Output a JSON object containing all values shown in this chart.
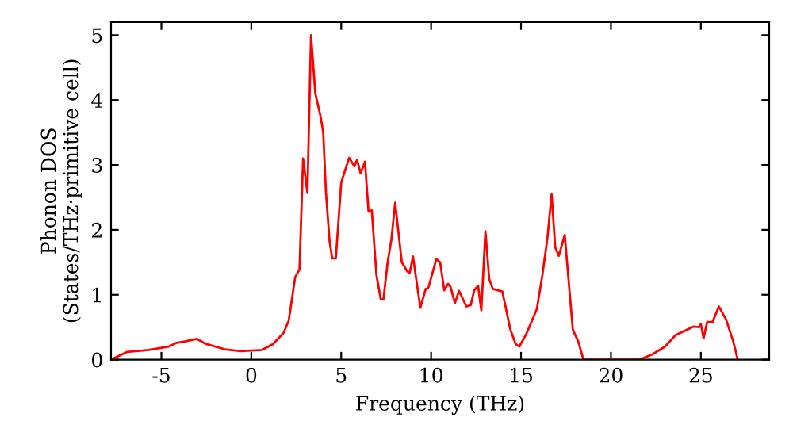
{
  "chart_data": {
    "type": "line",
    "xlabel": "Frequency (THz)",
    "ylabel": "Phonon DOS\n(States/THz·primitive cell)",
    "xlim": [
      -7.8,
      28.8
    ],
    "ylim": [
      0,
      5.2
    ],
    "xticks": [
      -5,
      0,
      5,
      10,
      15,
      20,
      25
    ],
    "yticks": [
      0,
      1,
      2,
      3,
      4,
      5
    ],
    "grid": false,
    "legend": false,
    "marker": "none",
    "line_style": "solid",
    "series": [
      {
        "color": "#ff0000",
        "x": [
          -7.8,
          -6.9,
          -5.7,
          -4.6,
          -4.15,
          -3.7,
          -3.03,
          -2.5,
          -1.47,
          -0.58,
          0.6,
          1.2,
          1.79,
          2.08,
          2.44,
          2.68,
          2.88,
          3.12,
          3.32,
          3.56,
          3.85,
          4.0,
          4.15,
          4.35,
          4.5,
          4.7,
          5.0,
          5.44,
          5.73,
          5.88,
          6.08,
          6.32,
          6.52,
          6.7,
          6.96,
          7.2,
          7.35,
          7.58,
          7.79,
          8.0,
          8.37,
          8.67,
          8.81,
          8.99,
          9.4,
          9.7,
          9.85,
          10.29,
          10.5,
          10.73,
          10.94,
          11.08,
          11.32,
          11.55,
          11.96,
          12.2,
          12.4,
          12.61,
          12.79,
          13.02,
          13.23,
          13.43,
          13.96,
          14.4,
          14.7,
          14.9,
          15.3,
          15.88,
          16.18,
          16.47,
          16.7,
          16.9,
          17.1,
          17.43,
          17.88,
          18.18,
          18.47,
          21.6,
          22.3,
          23.0,
          23.6,
          24.3,
          24.6,
          24.9,
          25.0,
          25.15,
          25.35,
          25.65,
          26.0,
          26.4,
          26.8,
          27.05
        ],
        "values": [
          0,
          0.12,
          0.15,
          0.2,
          0.26,
          0.28,
          0.32,
          0.24,
          0.16,
          0.13,
          0.15,
          0.24,
          0.41,
          0.6,
          1.27,
          1.39,
          3.1,
          2.57,
          5.0,
          4.1,
          3.75,
          3.5,
          2.58,
          1.83,
          1.56,
          1.56,
          2.73,
          3.11,
          2.98,
          3.08,
          2.87,
          3.05,
          2.28,
          2.3,
          1.3,
          0.93,
          0.93,
          1.5,
          1.85,
          2.42,
          1.5,
          1.36,
          1.34,
          1.59,
          0.8,
          1.09,
          1.11,
          1.55,
          1.5,
          1.07,
          1.17,
          1.12,
          0.87,
          1.06,
          0.82,
          0.84,
          1.07,
          1.14,
          0.76,
          1.98,
          1.24,
          1.09,
          1.05,
          0.47,
          0.24,
          0.2,
          0.4,
          0.78,
          1.29,
          1.88,
          2.55,
          1.73,
          1.6,
          1.92,
          0.46,
          0.28,
          0,
          0,
          0.08,
          0.2,
          0.38,
          0.47,
          0.51,
          0.5,
          0.55,
          0.33,
          0.58,
          0.58,
          0.82,
          0.62,
          0.28,
          0
        ]
      }
    ]
  }
}
